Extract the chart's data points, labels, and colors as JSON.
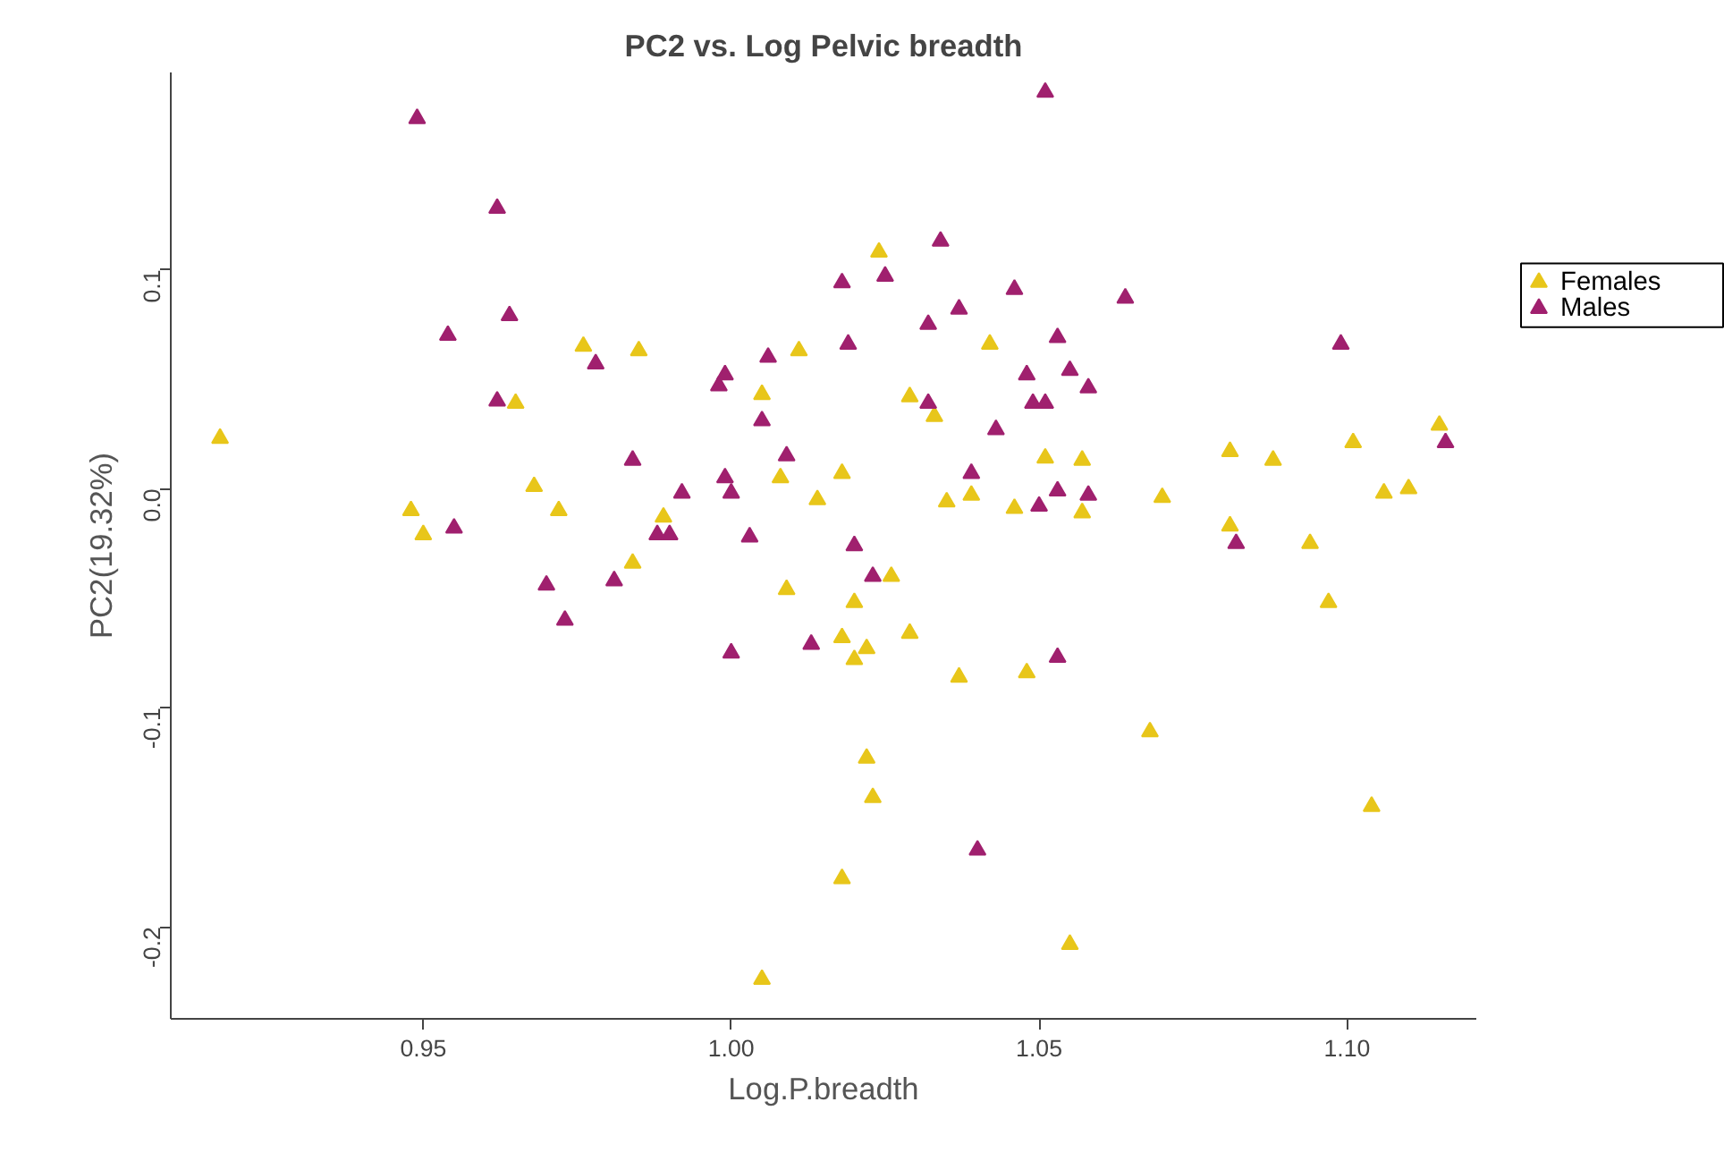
{
  "chart_data": {
    "type": "scatter",
    "title": "PC2 vs. Log Pelvic breadth",
    "xlabel": "Log.P.breadth",
    "ylabel": "PC2(19.32%)",
    "xlim": [
      0.909,
      1.121
    ],
    "ylim": [
      -0.242,
      0.19
    ],
    "xticks": [
      {
        "value": 0.95,
        "label": "0.95"
      },
      {
        "value": 1.0,
        "label": "1.00"
      },
      {
        "value": 1.05,
        "label": "1.05"
      },
      {
        "value": 1.1,
        "label": "1.10"
      }
    ],
    "yticks": [
      {
        "value": -0.2,
        "label": "-0.2"
      },
      {
        "value": -0.1,
        "label": "-0.1"
      },
      {
        "value": 0.0,
        "label": "0.0"
      },
      {
        "value": 0.1,
        "label": "0.1"
      }
    ],
    "marker": "triangle",
    "grid": false,
    "legend": "right",
    "series": [
      {
        "name": "Females",
        "color": "#e8c61a",
        "x": [
          0.917,
          0.976,
          0.985,
          0.965,
          0.948,
          0.95,
          0.968,
          0.972,
          0.989,
          0.984,
          1.024,
          1.011,
          1.005,
          1.042,
          1.029,
          1.033,
          1.051,
          1.057,
          1.07,
          1.008,
          1.018,
          1.014,
          1.035,
          1.039,
          1.046,
          1.057,
          1.026,
          1.009,
          1.02,
          1.018,
          1.022,
          1.029,
          1.02,
          1.037,
          1.048,
          1.068,
          1.022,
          1.023,
          1.018,
          1.055,
          1.005,
          1.081,
          1.088,
          1.101,
          1.115,
          1.106,
          1.11,
          1.081,
          1.094,
          1.097,
          1.104
        ],
        "values": [
          0.023,
          0.065,
          0.063,
          0.039,
          -0.01,
          -0.021,
          0.001,
          -0.01,
          -0.013,
          -0.034,
          0.108,
          0.063,
          0.043,
          0.066,
          0.042,
          0.033,
          0.014,
          0.013,
          -0.004,
          0.005,
          0.007,
          -0.005,
          -0.006,
          -0.003,
          -0.009,
          -0.011,
          -0.04,
          -0.046,
          -0.052,
          -0.068,
          -0.073,
          -0.066,
          -0.078,
          -0.086,
          -0.084,
          -0.111,
          -0.123,
          -0.141,
          -0.178,
          -0.208,
          -0.224,
          0.017,
          0.013,
          0.021,
          0.029,
          -0.002,
          0.0,
          -0.017,
          -0.025,
          -0.052,
          -0.145
        ]
      },
      {
        "name": "Males",
        "color": "#a0206e",
        "x": [
          0.949,
          0.962,
          0.954,
          0.964,
          0.978,
          0.998,
          0.999,
          0.962,
          0.984,
          0.992,
          0.999,
          1.0,
          0.955,
          0.988,
          0.99,
          0.981,
          0.97,
          0.973,
          1.0,
          1.051,
          1.034,
          1.025,
          1.018,
          1.046,
          1.064,
          1.037,
          1.032,
          1.019,
          1.006,
          1.053,
          1.048,
          1.055,
          1.058,
          1.049,
          1.051,
          1.032,
          1.005,
          1.043,
          1.009,
          1.039,
          1.053,
          1.058,
          1.05,
          1.003,
          1.02,
          1.023,
          1.013,
          1.053,
          1.04,
          1.099,
          1.116,
          1.082
        ],
        "values": [
          0.169,
          0.128,
          0.07,
          0.079,
          0.057,
          0.047,
          0.052,
          0.04,
          0.013,
          -0.002,
          0.005,
          -0.002,
          -0.018,
          -0.021,
          -0.021,
          -0.042,
          -0.044,
          -0.06,
          -0.075,
          0.181,
          0.113,
          0.097,
          0.094,
          0.091,
          0.087,
          0.082,
          0.075,
          0.066,
          0.06,
          0.069,
          0.052,
          0.054,
          0.046,
          0.039,
          0.039,
          0.039,
          0.031,
          0.027,
          0.015,
          0.007,
          -0.001,
          -0.003,
          -0.008,
          -0.022,
          -0.026,
          -0.04,
          -0.071,
          -0.077,
          -0.165,
          0.066,
          0.021,
          -0.025
        ]
      }
    ]
  }
}
